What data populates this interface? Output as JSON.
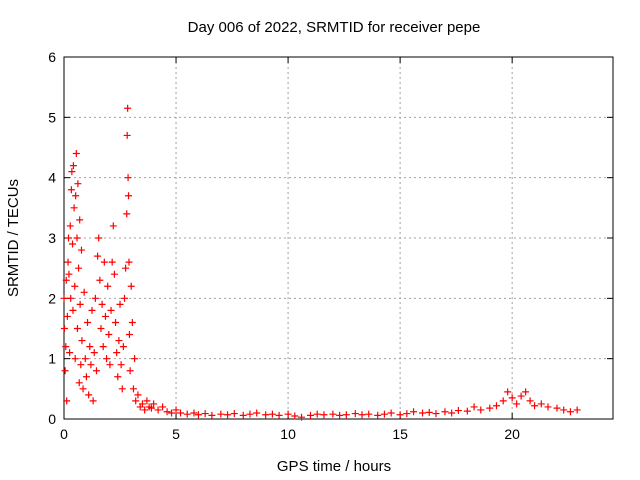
{
  "chart_data": {
    "type": "scatter",
    "title": "Day 006 of 2022, SRMTID for receiver pepe",
    "xlabel": "GPS time / hours",
    "ylabel": "SRMTID / TECUs",
    "xlim": [
      0,
      24.5
    ],
    "ylim": [
      0,
      6
    ],
    "xticks": [
      0,
      5,
      10,
      15,
      20
    ],
    "yticks": [
      0,
      1,
      2,
      3,
      4,
      5,
      6
    ],
    "xtick_labels": [
      "0",
      "5",
      "10",
      "15",
      "20"
    ],
    "ytick_labels": [
      "0",
      "1",
      "2",
      "3",
      "4",
      "5",
      "6"
    ],
    "grid": true,
    "marker": "+",
    "color": "#ff0000",
    "series": [
      {
        "name": "SRMTID",
        "points": [
          [
            0.0,
            2.0
          ],
          [
            0.02,
            1.5
          ],
          [
            0.05,
            0.8
          ],
          [
            0.08,
            1.2
          ],
          [
            0.1,
            2.3
          ],
          [
            0.12,
            0.3
          ],
          [
            0.15,
            1.7
          ],
          [
            0.18,
            2.6
          ],
          [
            0.2,
            3.0
          ],
          [
            0.22,
            2.4
          ],
          [
            0.25,
            1.1
          ],
          [
            0.28,
            3.2
          ],
          [
            0.3,
            2.0
          ],
          [
            0.33,
            3.8
          ],
          [
            0.35,
            4.1
          ],
          [
            0.38,
            2.9
          ],
          [
            0.4,
            1.8
          ],
          [
            0.42,
            4.2
          ],
          [
            0.45,
            3.5
          ],
          [
            0.48,
            2.2
          ],
          [
            0.5,
            1.0
          ],
          [
            0.52,
            3.7
          ],
          [
            0.55,
            4.4
          ],
          [
            0.58,
            3.0
          ],
          [
            0.6,
            1.5
          ],
          [
            0.62,
            3.9
          ],
          [
            0.65,
            2.5
          ],
          [
            0.68,
            0.6
          ],
          [
            0.7,
            3.3
          ],
          [
            0.72,
            1.9
          ],
          [
            0.75,
            0.9
          ],
          [
            0.78,
            2.8
          ],
          [
            0.8,
            1.3
          ],
          [
            0.85,
            0.5
          ],
          [
            0.9,
            2.1
          ],
          [
            0.95,
            1.0
          ],
          [
            1.0,
            0.7
          ],
          [
            1.05,
            1.6
          ],
          [
            1.1,
            0.4
          ],
          [
            1.15,
            1.2
          ],
          [
            1.2,
            0.9
          ],
          [
            1.25,
            1.8
          ],
          [
            1.3,
            0.3
          ],
          [
            1.35,
            1.1
          ],
          [
            1.4,
            2.0
          ],
          [
            1.45,
            0.8
          ],
          [
            1.5,
            2.7
          ],
          [
            1.55,
            3.0
          ],
          [
            1.6,
            2.3
          ],
          [
            1.65,
            1.5
          ],
          [
            1.7,
            1.9
          ],
          [
            1.75,
            1.2
          ],
          [
            1.8,
            2.6
          ],
          [
            1.85,
            1.7
          ],
          [
            1.9,
            1.0
          ],
          [
            1.95,
            2.2
          ],
          [
            2.0,
            1.4
          ],
          [
            2.05,
            0.9
          ],
          [
            2.1,
            1.8
          ],
          [
            2.15,
            2.6
          ],
          [
            2.2,
            3.2
          ],
          [
            2.25,
            2.4
          ],
          [
            2.3,
            1.6
          ],
          [
            2.35,
            1.1
          ],
          [
            2.4,
            0.7
          ],
          [
            2.45,
            1.3
          ],
          [
            2.5,
            1.9
          ],
          [
            2.55,
            0.9
          ],
          [
            2.6,
            0.5
          ],
          [
            2.65,
            1.2
          ],
          [
            2.7,
            2.0
          ],
          [
            2.75,
            2.5
          ],
          [
            2.8,
            3.4
          ],
          [
            2.82,
            4.7
          ],
          [
            2.84,
            5.15
          ],
          [
            2.86,
            4.0
          ],
          [
            2.88,
            3.7
          ],
          [
            2.9,
            2.6
          ],
          [
            2.92,
            1.4
          ],
          [
            2.95,
            0.8
          ],
          [
            3.0,
            2.2
          ],
          [
            3.05,
            1.6
          ],
          [
            3.1,
            0.5
          ],
          [
            3.15,
            1.0
          ],
          [
            3.2,
            0.3
          ],
          [
            3.3,
            0.4
          ],
          [
            3.4,
            0.2
          ],
          [
            3.5,
            0.25
          ],
          [
            3.6,
            0.15
          ],
          [
            3.7,
            0.3
          ],
          [
            3.8,
            0.2
          ],
          [
            3.9,
            0.18
          ],
          [
            4.0,
            0.25
          ],
          [
            4.2,
            0.15
          ],
          [
            4.4,
            0.2
          ],
          [
            4.6,
            0.12
          ],
          [
            4.8,
            0.1
          ],
          [
            5.0,
            0.15
          ],
          [
            5.2,
            0.1
          ],
          [
            5.5,
            0.08
          ],
          [
            5.8,
            0.1
          ],
          [
            6.0,
            0.07
          ],
          [
            6.3,
            0.09
          ],
          [
            6.6,
            0.06
          ],
          [
            7.0,
            0.08
          ],
          [
            7.3,
            0.07
          ],
          [
            7.6,
            0.09
          ],
          [
            8.0,
            0.06
          ],
          [
            8.3,
            0.08
          ],
          [
            8.6,
            0.1
          ],
          [
            9.0,
            0.07
          ],
          [
            9.3,
            0.08
          ],
          [
            9.6,
            0.06
          ],
          [
            10.0,
            0.08
          ],
          [
            10.3,
            0.05
          ],
          [
            10.6,
            0.03
          ],
          [
            11.0,
            0.06
          ],
          [
            11.3,
            0.08
          ],
          [
            11.6,
            0.07
          ],
          [
            12.0,
            0.08
          ],
          [
            12.3,
            0.06
          ],
          [
            12.6,
            0.07
          ],
          [
            13.0,
            0.09
          ],
          [
            13.3,
            0.07
          ],
          [
            13.6,
            0.08
          ],
          [
            14.0,
            0.06
          ],
          [
            14.3,
            0.08
          ],
          [
            14.6,
            0.1
          ],
          [
            15.0,
            0.07
          ],
          [
            15.3,
            0.09
          ],
          [
            15.6,
            0.12
          ],
          [
            16.0,
            0.1
          ],
          [
            16.3,
            0.11
          ],
          [
            16.6,
            0.09
          ],
          [
            17.0,
            0.12
          ],
          [
            17.3,
            0.1
          ],
          [
            17.6,
            0.14
          ],
          [
            18.0,
            0.13
          ],
          [
            18.3,
            0.2
          ],
          [
            18.6,
            0.15
          ],
          [
            19.0,
            0.18
          ],
          [
            19.3,
            0.22
          ],
          [
            19.6,
            0.3
          ],
          [
            19.8,
            0.45
          ],
          [
            20.0,
            0.35
          ],
          [
            20.2,
            0.25
          ],
          [
            20.4,
            0.38
          ],
          [
            20.6,
            0.45
          ],
          [
            20.8,
            0.3
          ],
          [
            21.0,
            0.22
          ],
          [
            21.3,
            0.25
          ],
          [
            21.6,
            0.2
          ],
          [
            22.0,
            0.18
          ],
          [
            22.3,
            0.15
          ],
          [
            22.6,
            0.12
          ],
          [
            22.9,
            0.15
          ]
        ]
      }
    ]
  }
}
